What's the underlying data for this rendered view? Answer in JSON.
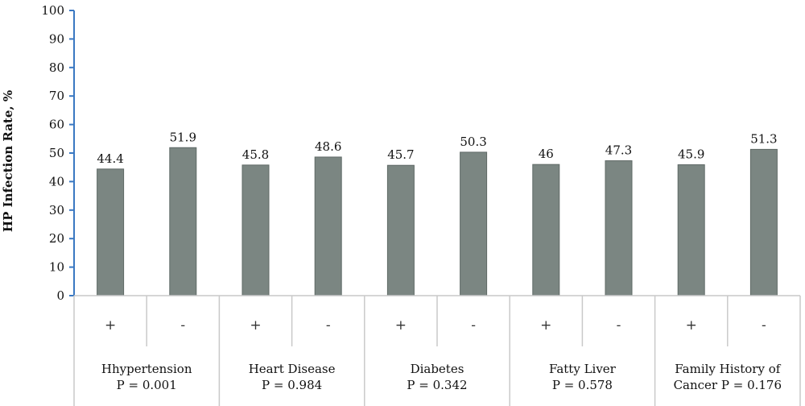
{
  "chart_data": {
    "type": "bar",
    "ylabel": "HP Infection Rate, %",
    "ylim": [
      0,
      100
    ],
    "yticks": [
      0,
      10,
      20,
      30,
      40,
      50,
      60,
      70,
      80,
      90,
      100
    ],
    "grid": false,
    "legend": "none",
    "bar_color": "#7b8682",
    "axis_color": "#3a78c2",
    "categories": [
      "+",
      "-",
      "+",
      "-",
      "+",
      "-",
      "+",
      "-",
      "+",
      "-"
    ],
    "values": [
      44.4,
      51.9,
      45.8,
      48.6,
      45.7,
      50.3,
      46,
      47.3,
      45.9,
      51.3
    ],
    "value_labels": [
      "44.4",
      "51.9",
      "45.8",
      "48.6",
      "45.7",
      "50.3",
      "46",
      "47.3",
      "45.9",
      "51.3"
    ],
    "groups": [
      {
        "name_lines": [
          "Hhypertension",
          "P = 0.001"
        ]
      },
      {
        "name_lines": [
          "Heart Disease",
          "P = 0.984"
        ]
      },
      {
        "name_lines": [
          "Diabetes",
          "P = 0.342"
        ]
      },
      {
        "name_lines": [
          "Fatty Liver",
          "P = 0.578"
        ]
      },
      {
        "name_lines": [
          "Family History of",
          "Cancer P = 0.176"
        ]
      }
    ]
  }
}
